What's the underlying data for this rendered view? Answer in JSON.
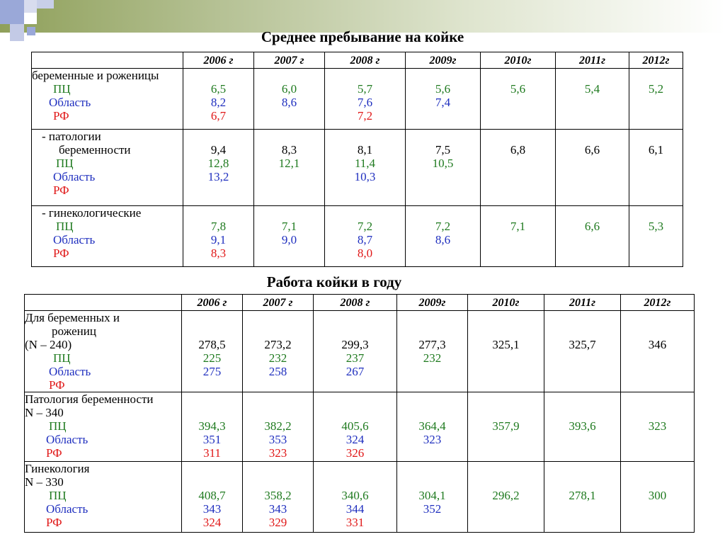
{
  "colors": {
    "pc": "#1f7a1f",
    "region": "#1f2fbf",
    "rf": "#e01818"
  },
  "table1": {
    "title": "Среднее пребывание на койке",
    "years": [
      "2006 г",
      "2007 г",
      "2008 г",
      "2009г",
      "2010г",
      "2011г",
      "2012г"
    ],
    "groups": [
      {
        "label_lines": [
          {
            "text": "беременные и роженицы",
            "color": "k",
            "indent": 0
          },
          {
            "text": "ПЦ",
            "color": "g",
            "indent": 30
          },
          {
            "text": "Область",
            "color": "b",
            "indent": 24
          },
          {
            "text": "РФ",
            "color": "r",
            "indent": 30
          }
        ],
        "values": [
          [
            "",
            "6,5",
            "8,2",
            "6,7"
          ],
          [
            "",
            "6,0",
            "8,6",
            ""
          ],
          [
            "",
            "5,7",
            "7,6",
            "7,2"
          ],
          [
            "",
            "5,6",
            "7,4",
            ""
          ],
          [
            "",
            "5,6",
            "",
            ""
          ],
          [
            "",
            "5,4",
            "",
            ""
          ],
          [
            "",
            "5,2",
            "",
            ""
          ]
        ]
      },
      {
        "label_lines": [
          {
            "text": "- патологии",
            "color": "k",
            "indent": 14
          },
          {
            "text": "беременности",
            "color": "k",
            "indent": 38
          },
          {
            "text": "ПЦ",
            "color": "g",
            "indent": 34
          },
          {
            "text": "Область",
            "color": "b",
            "indent": 30
          },
          {
            "text": "РФ",
            "color": "r",
            "indent": 30
          }
        ],
        "values": [
          [
            "",
            "9,4",
            "12,8",
            "13,2",
            ""
          ],
          [
            "",
            "8,3",
            "12,1",
            "",
            ""
          ],
          [
            "",
            "8,1",
            "11,4",
            "10,3",
            ""
          ],
          [
            "",
            "7,5",
            "10,5",
            "",
            ""
          ],
          [
            "",
            "6,8",
            "",
            "",
            ""
          ],
          [
            "",
            "6,6",
            "",
            "",
            ""
          ],
          [
            "",
            "6,1",
            "",
            "",
            ""
          ]
        ]
      },
      {
        "label_lines": [
          {
            "text": "- гинекологические",
            "color": "k",
            "indent": 14
          },
          {
            "text": "ПЦ",
            "color": "g",
            "indent": 34
          },
          {
            "text": "Область",
            "color": "b",
            "indent": 30
          },
          {
            "text": "РФ",
            "color": "r",
            "indent": 30
          }
        ],
        "values": [
          [
            "",
            "7,8",
            "9,1",
            "8,3"
          ],
          [
            "",
            "7,1",
            "9,0",
            ""
          ],
          [
            "",
            "7,2",
            "8,7",
            "8,0"
          ],
          [
            "",
            "7,2",
            "8,6",
            ""
          ],
          [
            "",
            "7,1",
            "",
            ""
          ],
          [
            "",
            "6,6",
            "",
            ""
          ],
          [
            "",
            "5,3",
            "",
            ""
          ]
        ]
      }
    ]
  },
  "table2": {
    "title": "Работа койки в году",
    "years": [
      "2006 г",
      "2007 г",
      "2008 г",
      "2009г",
      "2010г",
      "2011г",
      "2012г"
    ],
    "groups": [
      {
        "label_lines": [
          {
            "text": "Для беременных и",
            "color": "k",
            "indent": 0
          },
          {
            "text": "рожениц",
            "color": "k",
            "indent": 38
          },
          {
            "text": "(N – 240)",
            "color": "k",
            "indent": 0
          },
          {
            "text": "ПЦ",
            "color": "g",
            "indent": 40
          },
          {
            "text": "Область",
            "color": "b",
            "indent": 34
          },
          {
            "text": "РФ",
            "color": "r",
            "indent": 34
          }
        ],
        "values": [
          [
            "",
            "",
            "278,5",
            "225",
            "275",
            ""
          ],
          [
            "",
            "",
            "273,2",
            "232",
            "258",
            ""
          ],
          [
            "",
            "",
            "299,3",
            "237",
            "267",
            ""
          ],
          [
            "",
            "",
            "277,3",
            "232",
            "",
            ""
          ],
          [
            "",
            "",
            "325,1",
            "",
            "",
            ""
          ],
          [
            "",
            "",
            "325,7",
            "",
            "",
            ""
          ],
          [
            "",
            "",
            "346",
            "",
            "",
            ""
          ]
        ]
      },
      {
        "label_lines": [
          {
            "text": "Патология беременности",
            "color": "k",
            "indent": 0
          },
          {
            "text": "N – 340",
            "color": "k",
            "indent": 0
          },
          {
            "text": "ПЦ",
            "color": "g",
            "indent": 34
          },
          {
            "text": "Область",
            "color": "b",
            "indent": 30
          },
          {
            "text": "РФ",
            "color": "r",
            "indent": 30
          }
        ],
        "values": [
          [
            "",
            "",
            "394,3",
            "351",
            "311"
          ],
          [
            "",
            "",
            "382,2",
            "353",
            "323"
          ],
          [
            "",
            "",
            "405,6",
            "324",
            "326"
          ],
          [
            "",
            "",
            "364,4",
            "323",
            ""
          ],
          [
            "",
            "",
            "357,9",
            "",
            ""
          ],
          [
            "",
            "",
            "393,6",
            "",
            ""
          ],
          [
            "",
            "",
            "323",
            "",
            ""
          ]
        ]
      },
      {
        "label_lines": [
          {
            "text": "Гинекология",
            "color": "k",
            "indent": 0
          },
          {
            "text": "N – 330",
            "color": "k",
            "indent": 0
          },
          {
            "text": "ПЦ",
            "color": "g",
            "indent": 34
          },
          {
            "text": "Область",
            "color": "b",
            "indent": 30
          },
          {
            "text": "РФ",
            "color": "r",
            "indent": 30
          }
        ],
        "values": [
          [
            "",
            "",
            "408,7",
            "343",
            "324"
          ],
          [
            "",
            "",
            "358,2",
            "343",
            "329"
          ],
          [
            "",
            "",
            "340,6",
            "344",
            "331"
          ],
          [
            "",
            "",
            "304,1",
            "352",
            ""
          ],
          [
            "",
            "",
            "296,2",
            "",
            ""
          ],
          [
            "",
            "",
            "278,1",
            "",
            ""
          ],
          [
            "",
            "",
            "300",
            "",
            ""
          ]
        ]
      }
    ]
  }
}
